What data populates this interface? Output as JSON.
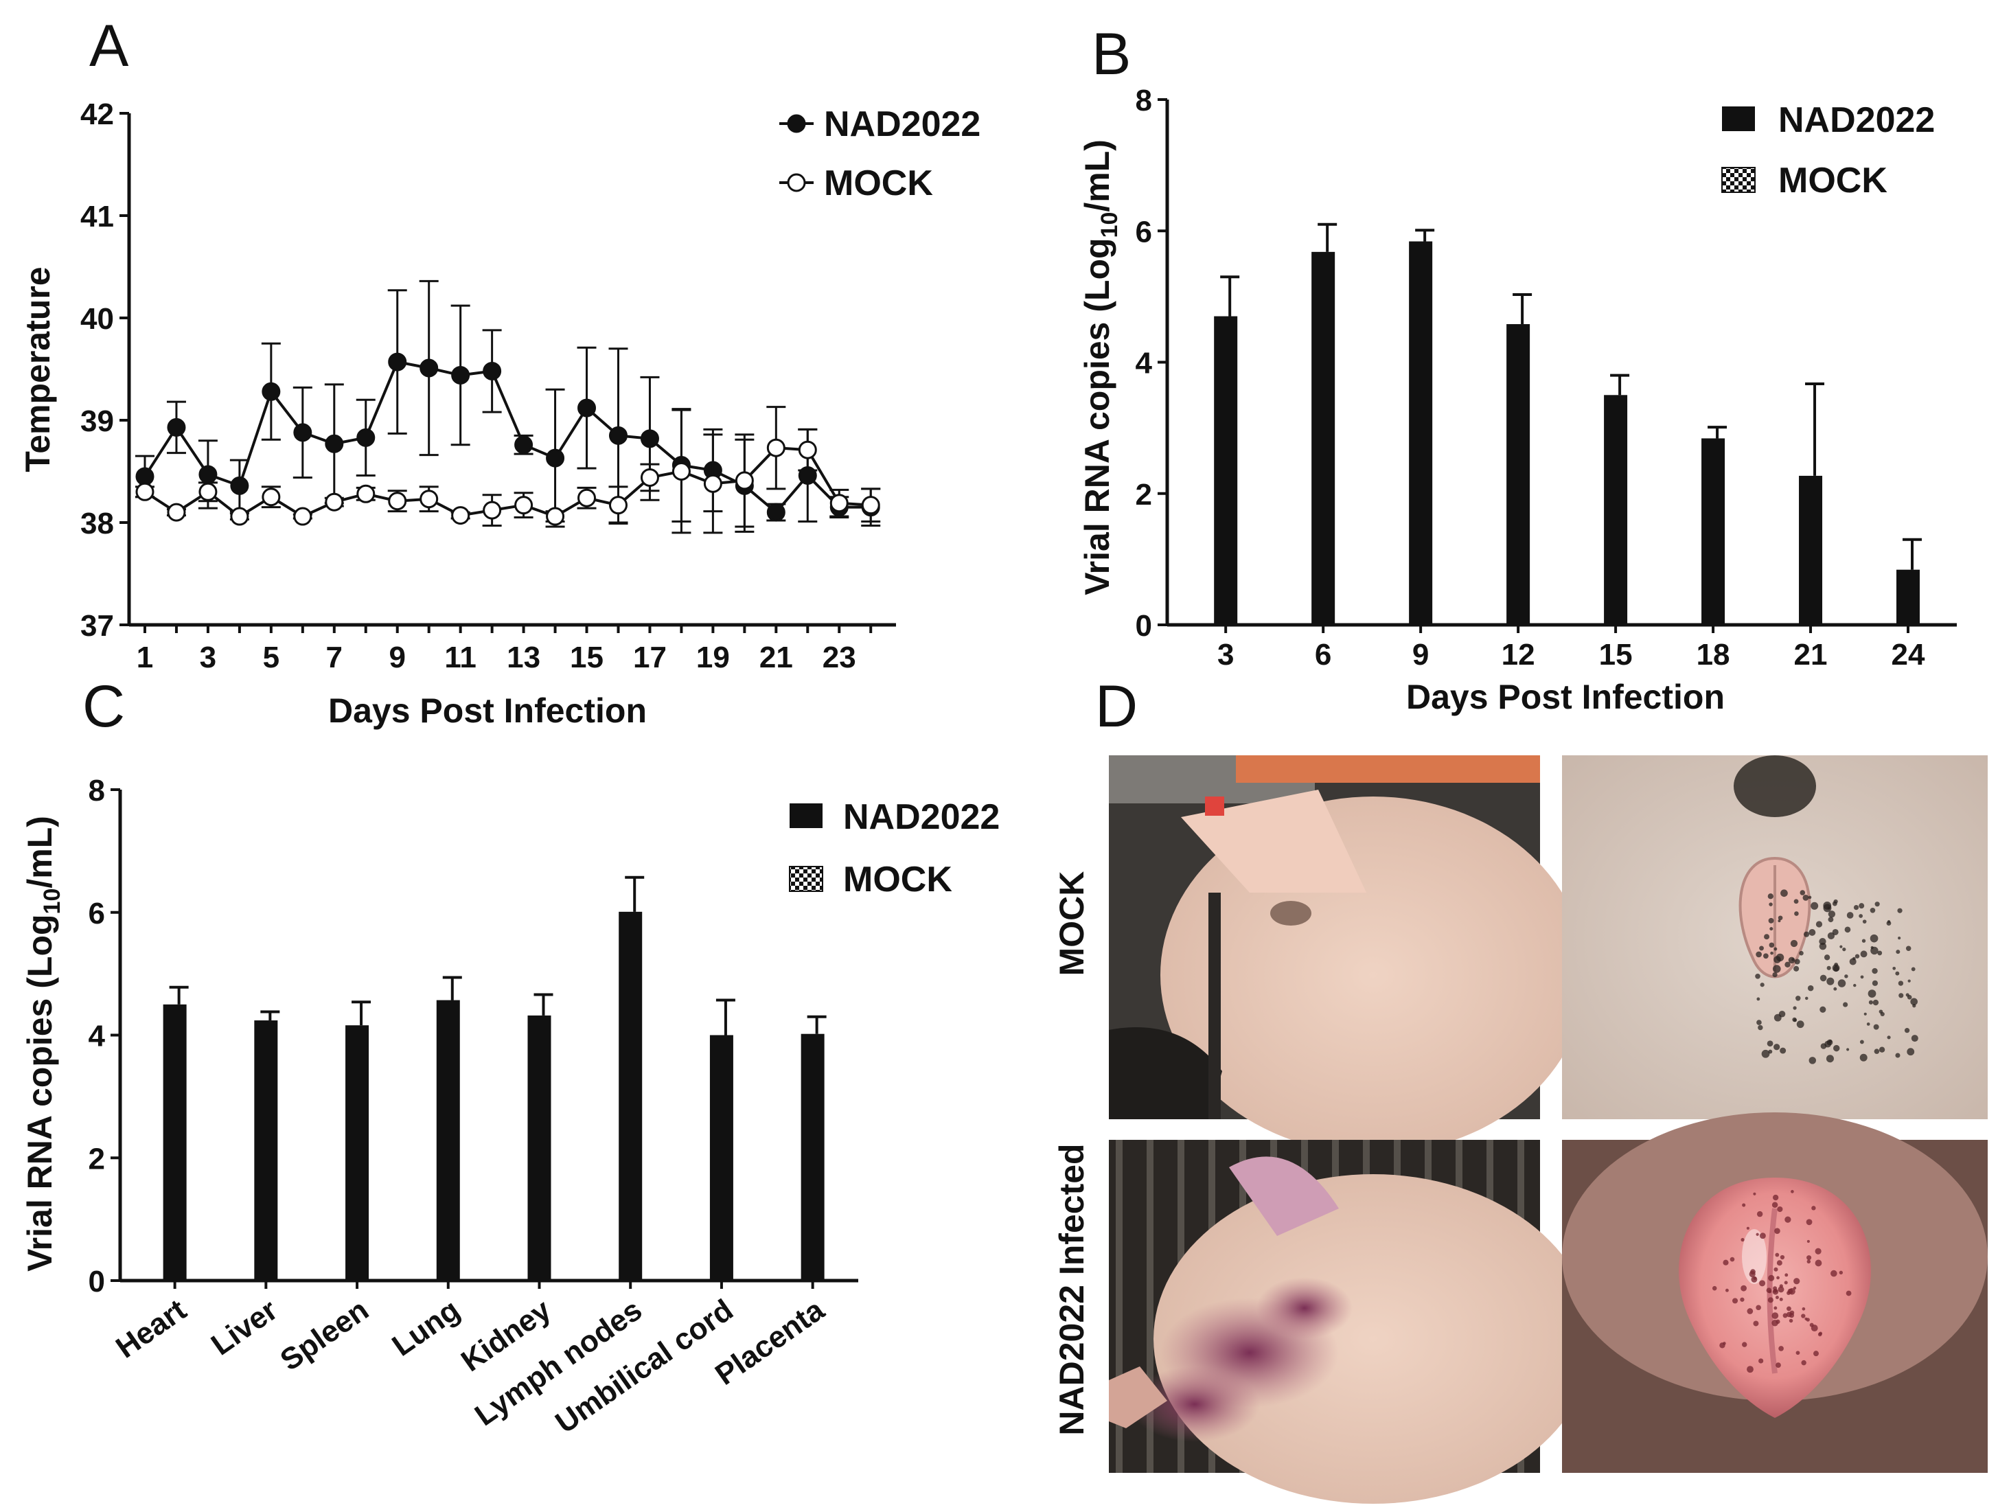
{
  "panels": {
    "a": {
      "letter": "A"
    },
    "b": {
      "letter": "B"
    },
    "c": {
      "letter": "C"
    },
    "d": {
      "letter": "D"
    }
  },
  "chart_data": [
    {
      "id": "A",
      "type": "line",
      "xlabel": "Days Post Infection",
      "ylabel": "Temperature",
      "xlim": [
        0.5,
        24.8
      ],
      "ylim": [
        37,
        42
      ],
      "yticks": [
        37,
        38,
        39,
        40,
        41,
        42
      ],
      "xticks": [
        1,
        3,
        5,
        7,
        9,
        11,
        13,
        15,
        17,
        19,
        21,
        23
      ],
      "legend_position": "top-right",
      "x": [
        1,
        2,
        3,
        4,
        5,
        6,
        7,
        8,
        9,
        10,
        11,
        12,
        13,
        14,
        15,
        16,
        17,
        18,
        19,
        20,
        21,
        22,
        23,
        24
      ],
      "series": [
        {
          "name": "NAD2022",
          "marker": "filled-circle",
          "values": [
            38.45,
            38.93,
            38.47,
            38.36,
            39.28,
            38.88,
            38.77,
            38.83,
            39.57,
            39.51,
            39.44,
            39.48,
            38.76,
            38.63,
            39.12,
            38.85,
            38.82,
            38.56,
            38.51,
            38.36,
            38.1,
            38.46,
            38.15,
            38.15
          ],
          "errors": [
            0.2,
            0.25,
            0.33,
            0.25,
            0.47,
            0.44,
            0.58,
            0.37,
            0.7,
            0.85,
            0.68,
            0.4,
            0.09,
            0.67,
            0.59,
            0.85,
            0.6,
            0.55,
            0.4,
            0.45,
            0.08,
            0.45,
            0.1,
            0.18
          ]
        },
        {
          "name": "MOCK",
          "marker": "open-circle",
          "values": [
            38.3,
            38.1,
            38.3,
            38.06,
            38.25,
            38.06,
            38.2,
            38.28,
            38.21,
            38.23,
            38.07,
            38.12,
            38.17,
            38.06,
            38.24,
            38.17,
            38.44,
            38.5,
            38.38,
            38.41,
            38.73,
            38.71,
            38.19,
            38.17
          ],
          "errors": [
            0.05,
            0.03,
            0.09,
            0.03,
            0.1,
            0.02,
            0.04,
            0.06,
            0.1,
            0.12,
            0.03,
            0.15,
            0.12,
            0.05,
            0.1,
            0.18,
            0.13,
            0.6,
            0.48,
            0.45,
            0.4,
            0.2,
            0.13,
            0.16
          ]
        }
      ]
    },
    {
      "id": "B",
      "type": "bar",
      "xlabel": "Days Post Infection",
      "ylabel_main": "Vrial RNA copies (Log",
      "ylabel_sub": "10",
      "ylabel_tail": "/mL)",
      "ylim": [
        0,
        8
      ],
      "yticks": [
        0,
        2,
        4,
        6,
        8
      ],
      "legend_position": "top-right",
      "legend": [
        {
          "name": "NAD2022",
          "pattern": "solid"
        },
        {
          "name": "MOCK",
          "pattern": "checker"
        }
      ],
      "categories": [
        "3",
        "6",
        "9",
        "12",
        "15",
        "18",
        "21",
        "24"
      ],
      "series": [
        {
          "name": "NAD2022",
          "values": [
            4.7,
            5.68,
            5.84,
            4.58,
            3.5,
            2.84,
            2.27,
            0.84
          ],
          "errors": [
            0.6,
            0.42,
            0.17,
            0.45,
            0.3,
            0.17,
            1.4,
            0.46
          ]
        }
      ]
    },
    {
      "id": "C",
      "type": "bar",
      "xlabel": "",
      "ylabel_main": "Vrial RNA copies (Log",
      "ylabel_sub": "10",
      "ylabel_tail": "/mL)",
      "ylim": [
        0,
        8
      ],
      "yticks": [
        0,
        2,
        4,
        6,
        8
      ],
      "legend_position": "top-right",
      "legend": [
        {
          "name": "NAD2022",
          "pattern": "solid"
        },
        {
          "name": "MOCK",
          "pattern": "checker"
        }
      ],
      "categories": [
        "Heart",
        "Liver",
        "Spleen",
        "Lung",
        "Kidney",
        "Lymph nodes",
        "Umbilical cord",
        "Placenta"
      ],
      "series": [
        {
          "name": "NAD2022",
          "values": [
            4.5,
            4.24,
            4.16,
            4.57,
            4.32,
            6.01,
            4.0,
            4.02
          ],
          "errors": [
            0.28,
            0.14,
            0.38,
            0.37,
            0.34,
            0.56,
            0.57,
            0.28
          ]
        }
      ]
    }
  ],
  "photo_panel": {
    "row_labels": [
      "MOCK",
      "NAD2022 Infected"
    ]
  },
  "colors": {
    "ink": "#111111",
    "photo_skin": "#e9c6b2",
    "photo_skin_light": "#d9c8bb",
    "photo_bg_dark": "#2f2a26",
    "lesion": "#8a3a60"
  }
}
